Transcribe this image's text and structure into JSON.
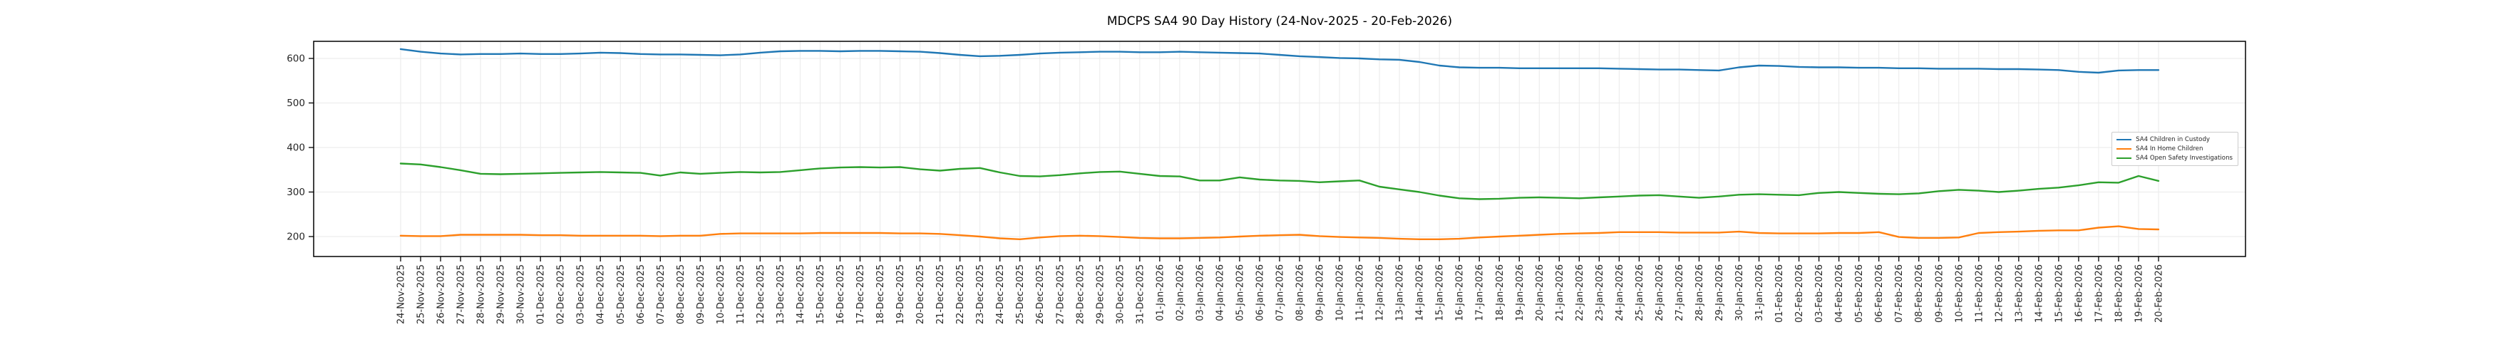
{
  "chart_data": {
    "type": "line",
    "title": "MDCPS SA4 90 Day History (24-Nov-2025 - 20-Feb-2026)",
    "xlabel": "",
    "ylabel": "",
    "grid": true,
    "legend_position": "center right",
    "y_ticks": [
      200,
      300,
      400,
      500,
      600
    ],
    "ylim": [
      155,
      638
    ],
    "x_tick_labels_rotation": 90,
    "categories": [
      "24-Nov-2025",
      "25-Nov-2025",
      "26-Nov-2025",
      "27-Nov-2025",
      "28-Nov-2025",
      "29-Nov-2025",
      "30-Nov-2025",
      "01-Dec-2025",
      "02-Dec-2025",
      "03-Dec-2025",
      "04-Dec-2025",
      "05-Dec-2025",
      "06-Dec-2025",
      "07-Dec-2025",
      "08-Dec-2025",
      "09-Dec-2025",
      "10-Dec-2025",
      "11-Dec-2025",
      "12-Dec-2025",
      "13-Dec-2025",
      "14-Dec-2025",
      "15-Dec-2025",
      "16-Dec-2025",
      "17-Dec-2025",
      "18-Dec-2025",
      "19-Dec-2025",
      "20-Dec-2025",
      "21-Dec-2025",
      "22-Dec-2025",
      "23-Dec-2025",
      "24-Dec-2025",
      "25-Dec-2025",
      "26-Dec-2025",
      "27-Dec-2025",
      "28-Dec-2025",
      "29-Dec-2025",
      "30-Dec-2025",
      "31-Dec-2025",
      "01-Jan-2026",
      "02-Jan-2026",
      "03-Jan-2026",
      "04-Jan-2026",
      "05-Jan-2026",
      "06-Jan-2026",
      "07-Jan-2026",
      "08-Jan-2026",
      "09-Jan-2026",
      "10-Jan-2026",
      "11-Jan-2026",
      "12-Jan-2026",
      "13-Jan-2026",
      "14-Jan-2026",
      "15-Jan-2026",
      "16-Jan-2026",
      "17-Jan-2026",
      "18-Jan-2026",
      "19-Jan-2026",
      "20-Jan-2026",
      "21-Jan-2026",
      "22-Jan-2026",
      "23-Jan-2026",
      "24-Jan-2026",
      "25-Jan-2026",
      "26-Jan-2026",
      "27-Jan-2026",
      "28-Jan-2026",
      "29-Jan-2026",
      "30-Jan-2026",
      "31-Jan-2026",
      "01-Feb-2026",
      "02-Feb-2026",
      "03-Feb-2026",
      "04-Feb-2026",
      "05-Feb-2026",
      "06-Feb-2026",
      "07-Feb-2026",
      "08-Feb-2026",
      "09-Feb-2026",
      "10-Feb-2026",
      "11-Feb-2026",
      "12-Feb-2026",
      "13-Feb-2026",
      "14-Feb-2026",
      "15-Feb-2026",
      "16-Feb-2026",
      "17-Feb-2026",
      "18-Feb-2026",
      "19-Feb-2026",
      "20-Feb-2026"
    ],
    "series": [
      {
        "name": "SA4 Children in Custody",
        "color": "#1f77b4",
        "values": [
          621,
          615,
          611,
          609,
          610,
          610,
          611,
          610,
          610,
          611,
          613,
          612,
          610,
          609,
          609,
          608,
          607,
          609,
          613,
          616,
          617,
          617,
          616,
          617,
          617,
          616,
          615,
          612,
          608,
          605,
          606,
          608,
          611,
          613,
          614,
          615,
          615,
          614,
          614,
          615,
          614,
          613,
          612,
          611,
          608,
          605,
          603,
          601,
          600,
          598,
          597,
          592,
          584,
          580,
          579,
          579,
          578,
          578,
          578,
          578,
          578,
          577,
          576,
          575,
          575,
          574,
          573,
          580,
          584,
          583,
          581,
          580,
          580,
          579,
          579,
          578,
          578,
          577,
          577,
          577,
          576,
          576,
          575,
          574,
          570,
          568,
          573,
          574,
          574
        ]
      },
      {
        "name": "SA4 In Home Children",
        "color": "#ff7f0e",
        "values": [
          202,
          201,
          201,
          204,
          204,
          204,
          204,
          203,
          203,
          202,
          202,
          202,
          202,
          201,
          202,
          202,
          206,
          207,
          207,
          207,
          207,
          208,
          208,
          208,
          208,
          207,
          207,
          206,
          203,
          200,
          196,
          194,
          198,
          201,
          202,
          201,
          199,
          197,
          196,
          196,
          197,
          198,
          200,
          202,
          203,
          204,
          201,
          199,
          198,
          197,
          195,
          194,
          194,
          195,
          198,
          200,
          202,
          204,
          206,
          207,
          208,
          210,
          210,
          210,
          209,
          209,
          209,
          211,
          208,
          207,
          207,
          207,
          208,
          208,
          210,
          199,
          197,
          197,
          198,
          208,
          210,
          211,
          213,
          214,
          214,
          220,
          223,
          217,
          216
        ]
      },
      {
        "name": "SA4 Open Safety Investigations",
        "color": "#2ca02c",
        "values": [
          364,
          362,
          356,
          349,
          341,
          340,
          341,
          342,
          343,
          344,
          345,
          344,
          343,
          337,
          344,
          341,
          343,
          345,
          344,
          345,
          349,
          353,
          355,
          356,
          355,
          356,
          351,
          348,
          352,
          354,
          344,
          336,
          335,
          338,
          342,
          345,
          346,
          341,
          336,
          335,
          326,
          326,
          333,
          328,
          326,
          325,
          322,
          324,
          326,
          312,
          306,
          300,
          292,
          286,
          284,
          285,
          287,
          288,
          287,
          286,
          288,
          290,
          292,
          293,
          290,
          287,
          290,
          294,
          295,
          294,
          293,
          298,
          300,
          298,
          296,
          295,
          297,
          302,
          305,
          303,
          300,
          303,
          307,
          310,
          315,
          322,
          321,
          336,
          325
        ]
      }
    ]
  }
}
